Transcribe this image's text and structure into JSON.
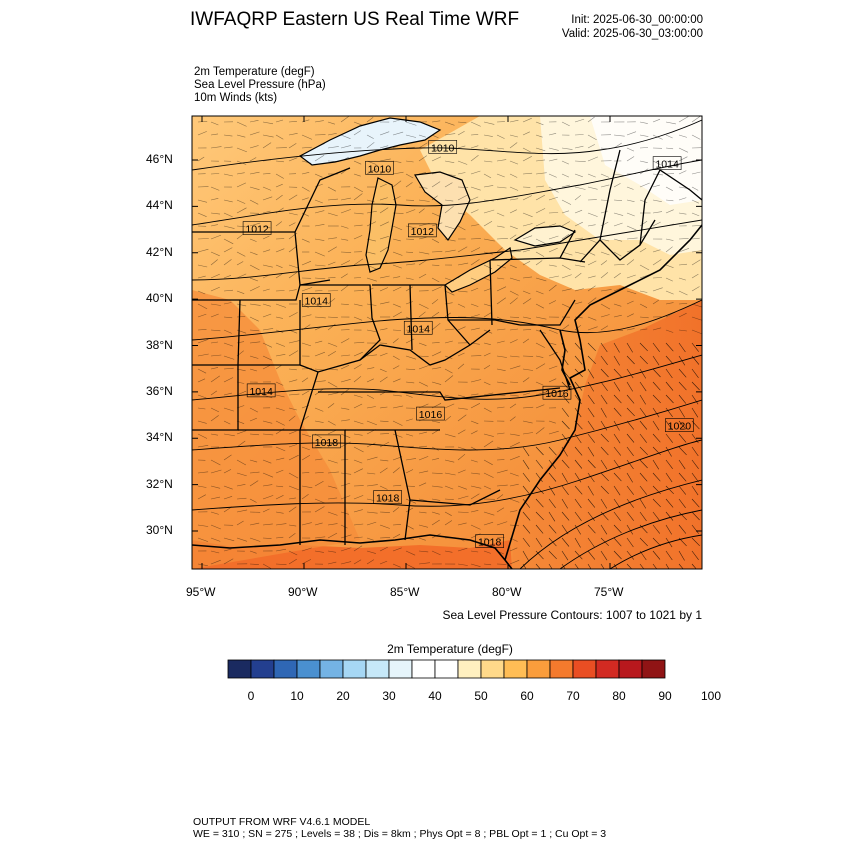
{
  "header": {
    "title": "IWFAQRP Eastern US Real Time WRF",
    "init": "Init: 2025-06-30_00:00:00",
    "valid": "Valid: 2025-06-30_03:00:00"
  },
  "variables": [
    "2m Temperature   (degF)",
    "Sea Level Pressure   (hPa)",
    "10m Winds   (kts)"
  ],
  "map": {
    "lat_ticks": [
      "46°N",
      "44°N",
      "42°N",
      "40°N",
      "38°N",
      "36°N",
      "34°N",
      "32°N",
      "30°N"
    ],
    "lon_ticks": [
      "95°W",
      "90°W",
      "85°W",
      "80°W",
      "75°W"
    ],
    "isobar_labels": [
      {
        "text": "1010",
        "lon": -83.2,
        "lat": 46.5
      },
      {
        "text": "1010",
        "lon": -86.3,
        "lat": 45.6
      },
      {
        "text": "1014",
        "lon": -72.2,
        "lat": 45.8
      },
      {
        "text": "1012",
        "lon": -92.3,
        "lat": 43.0
      },
      {
        "text": "1012",
        "lon": -84.2,
        "lat": 42.9
      },
      {
        "text": "1014",
        "lon": -89.4,
        "lat": 39.9
      },
      {
        "text": "1014",
        "lon": -84.4,
        "lat": 38.7
      },
      {
        "text": "1014",
        "lon": -92.1,
        "lat": 36.0
      },
      {
        "text": "1016",
        "lon": -77.6,
        "lat": 35.9
      },
      {
        "text": "1016",
        "lon": -83.8,
        "lat": 35.0
      },
      {
        "text": "1018",
        "lon": -88.9,
        "lat": 33.8
      },
      {
        "text": "1020",
        "lon": -71.6,
        "lat": 34.5
      },
      {
        "text": "1018",
        "lon": -85.9,
        "lat": 31.4
      },
      {
        "text": "1018",
        "lon": -80.9,
        "lat": 29.5
      }
    ]
  },
  "contour_note": "Sea Level Pressure Contours: 1007 to 1021 by 1",
  "colorbar": {
    "title": "2m Temperature  (degF)",
    "colors": [
      "#1a2a60",
      "#233f8f",
      "#2f67b5",
      "#4a90d0",
      "#74b3e4",
      "#a6d7f4",
      "#c6e8f8",
      "#e6f5fb",
      "#ffffff",
      "#ffffff",
      "#fff0c0",
      "#ffd98a",
      "#ffbd55",
      "#fa9d3c",
      "#f47a2d",
      "#e94e23",
      "#d22a22",
      "#b8181d",
      "#901415"
    ],
    "labels": [
      "0",
      "10",
      "20",
      "30",
      "40",
      "50",
      "60",
      "70",
      "80",
      "90",
      "100"
    ]
  },
  "footer": {
    "line1": "OUTPUT FROM WRF V4.6.1 MODEL",
    "line2": "WE = 310 ; SN = 275 ; Levels = 38 ; Dis = 8km ; Phys Opt = 8 ; PBL Opt = 1 ; Cu Opt = 3"
  }
}
